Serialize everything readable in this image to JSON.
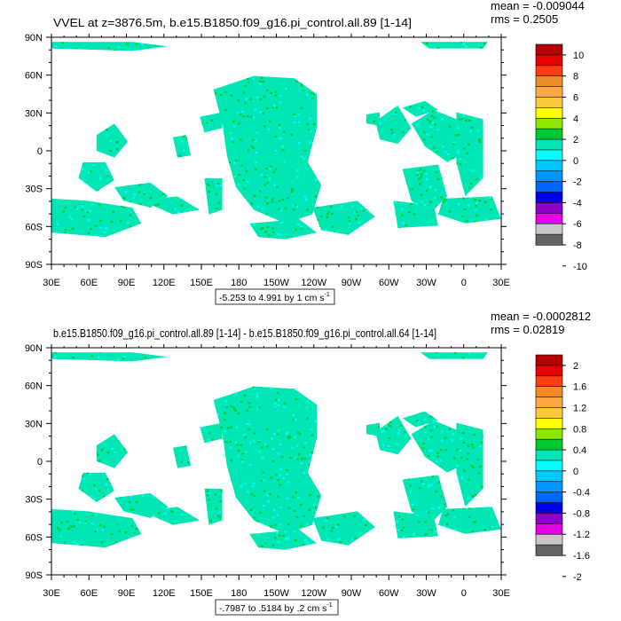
{
  "panels": [
    {
      "id": "top",
      "title": "VVEL at z=3876.5m, b.e15.B1850.f09_g16.pi_control.all.89 [1-14]",
      "mean_label": "mean = -0.009044",
      "rms_label": "rms = 0.2505",
      "range_label": "-5.253 to 4.991 by 1 cm s",
      "range_exponent": "-1",
      "colorbar_labels": [
        "10",
        "8",
        "6",
        "4",
        "2",
        "0",
        "-2",
        "-4",
        "-6",
        "-8",
        "-10"
      ]
    },
    {
      "id": "bottom",
      "title": "b.e15.B1850.f09_g16.pi_control.all.89 [1-14] - b.e15.B1850.f09_g16.pi_control.all.64 [1-14]",
      "mean_label": "mean = -0.0002812",
      "rms_label": "rms = 0.02819",
      "range_label": "-.7987 to .5184 by .2 cm s",
      "range_exponent": "-1",
      "colorbar_labels": [
        "2",
        "1.6",
        "1.2",
        "0.8",
        "0.4",
        "0",
        "-0.4",
        "-0.8",
        "-1.2",
        "-1.6",
        "-2"
      ]
    }
  ],
  "x_ticks": [
    "30E",
    "60E",
    "90E",
    "120E",
    "150E",
    "180",
    "150W",
    "120W",
    "90W",
    "60W",
    "30W",
    "0",
    "30E"
  ],
  "y_ticks": [
    "90N",
    "60N",
    "30N",
    "0",
    "30S",
    "60S",
    "90S"
  ],
  "colorbar_colors": [
    "#b40000",
    "#e60000",
    "#ff3c14",
    "#f08c28",
    "#ffa846",
    "#ffc83c",
    "#ffff00",
    "#8ce600",
    "#00c832",
    "#00e6b4",
    "#00ffff",
    "#00c8ff",
    "#0096ff",
    "#0064ff",
    "#0000e6",
    "#8c00c8",
    "#e600e6",
    "#c8c8c8",
    "#646464"
  ],
  "map_colors": {
    "dominant": "#00e6b4",
    "secondary": "#00c832",
    "cyan": "#00ffff"
  }
}
